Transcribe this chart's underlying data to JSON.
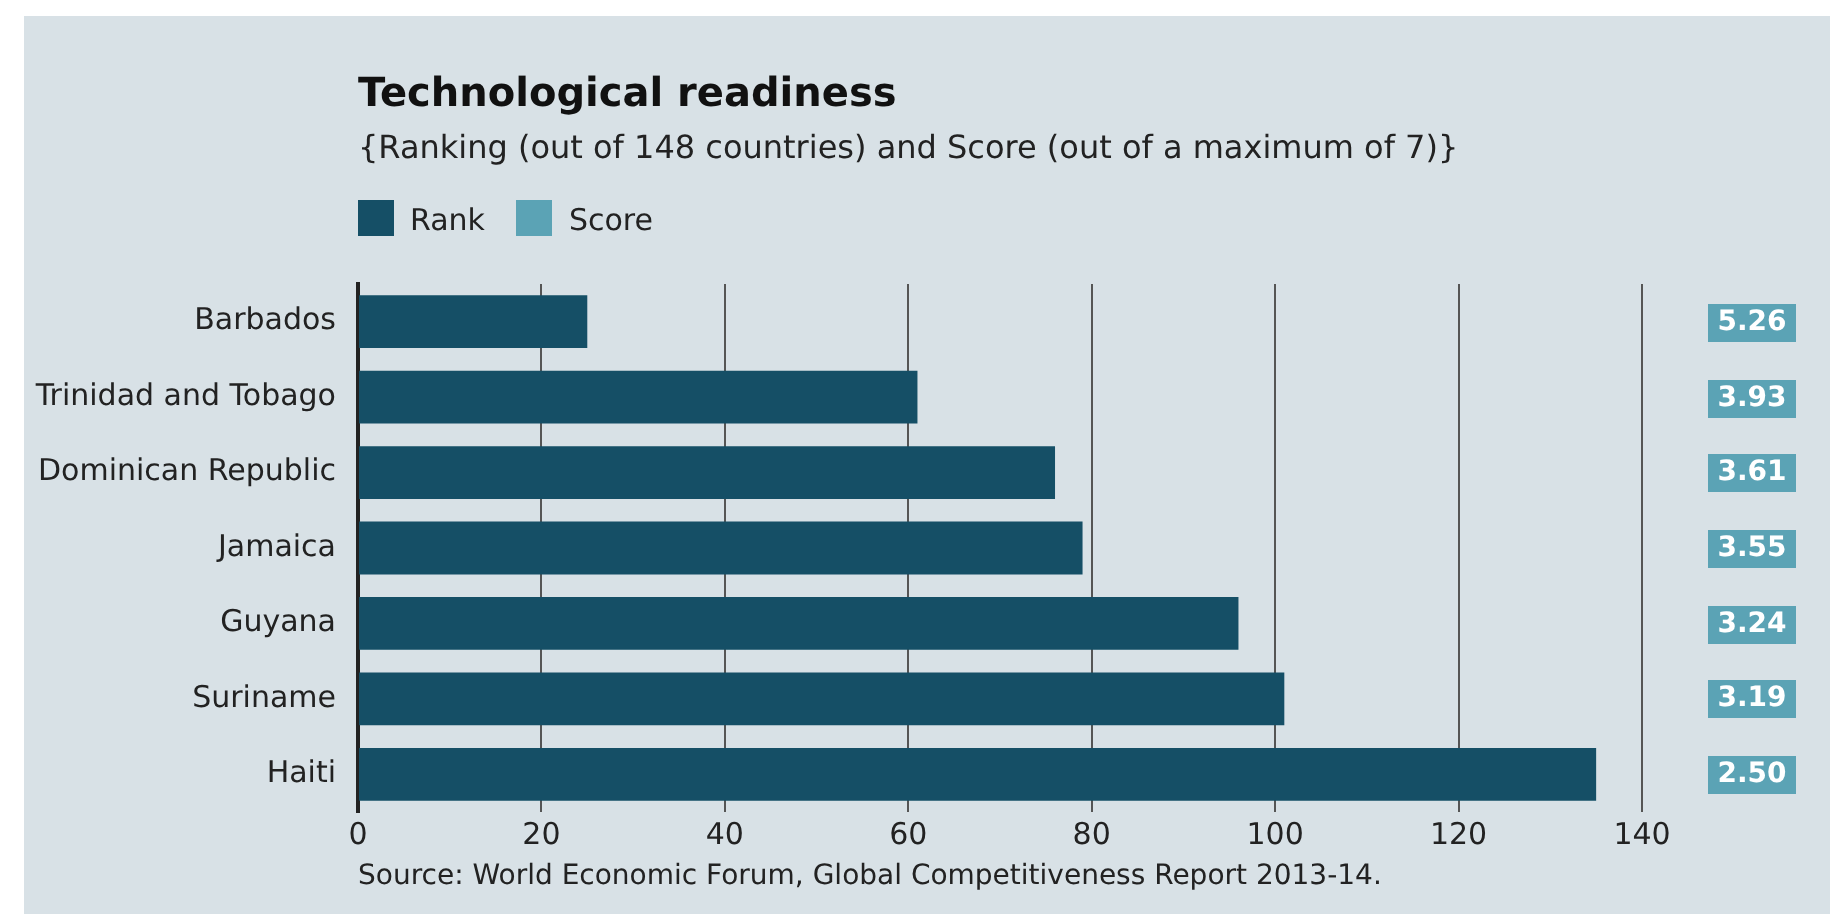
{
  "chart_data": [
    {
      "type": "bar",
      "orientation": "horizontal",
      "title": "Technological readiness",
      "subtitle": "{Ranking (out of 148 countries) and Score (out of a maximum of 7)}",
      "categories": [
        "Barbados",
        "Trinidad and Tobago",
        "Dominican Republic",
        "Jamaica",
        "Guyana",
        "Suriname",
        "Haiti"
      ],
      "series": [
        {
          "name": "Rank",
          "color": "#154f66",
          "values": [
            25,
            61,
            76,
            79,
            96,
            101,
            135
          ]
        }
      ],
      "xlim": [
        0,
        140
      ],
      "xticks": [
        0,
        20,
        40,
        60,
        80,
        100,
        120,
        140
      ],
      "grid": "x",
      "legend": "top left",
      "annotations": [
        "Source: World Economic Forum, Global Competitiveness Report 2013-14."
      ]
    },
    {
      "type": "other",
      "categories": [
        null,
        null,
        null,
        null,
        null,
        null,
        null
      ],
      "legend": "top left",
      "series": [
        {
          "name": "Score",
          "color": "#5ba3b5",
          "values": [
            5.26,
            3.93,
            3.61,
            3.55,
            3.24,
            3.19,
            2.5
          ],
          "value_labels": [
            "5.26",
            "3.93",
            "3.61",
            "3.55",
            "3.24",
            "3.19",
            "2.50"
          ]
        }
      ]
    }
  ]
}
